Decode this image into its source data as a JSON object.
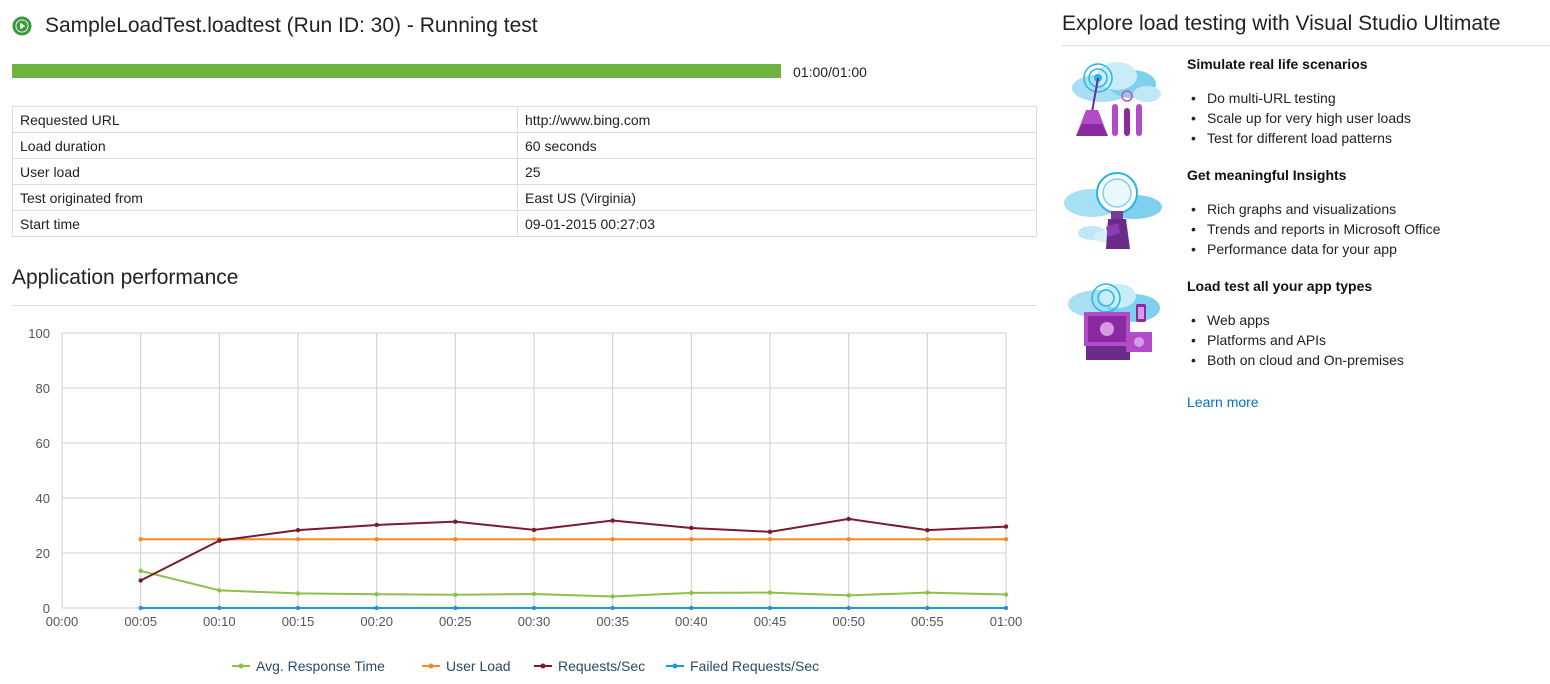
{
  "header": {
    "title": "SampleLoadTest.loadtest (Run ID: 30) - Running test",
    "status_color": "#3a9a3a"
  },
  "progress": {
    "fraction": 1.0,
    "text": "01:00/01:00",
    "color": "#6cb33f"
  },
  "info_table": [
    {
      "label": "Requested URL",
      "value": "http://www.bing.com"
    },
    {
      "label": "Load duration",
      "value": "60 seconds"
    },
    {
      "label": "User load",
      "value": "25"
    },
    {
      "label": "Test originated from",
      "value": "East US (Virginia)"
    },
    {
      "label": "Start time",
      "value": "09-01-2015 00:27:03"
    }
  ],
  "performance": {
    "title": "Application performance"
  },
  "chart_data": {
    "type": "line",
    "categories": [
      "00:00",
      "00:05",
      "00:10",
      "00:15",
      "00:20",
      "00:25",
      "00:30",
      "00:35",
      "00:40",
      "00:45",
      "00:50",
      "00:55",
      "01:00"
    ],
    "ylim": [
      0,
      100
    ],
    "yticks": [
      0,
      20,
      40,
      60,
      80,
      100
    ],
    "grid": true,
    "legend_position": "bottom",
    "series": [
      {
        "name": "Avg. Response Time",
        "color": "#8dc14a",
        "values": [
          null,
          13.5,
          6.4,
          5.3,
          5.0,
          4.8,
          5.1,
          4.2,
          5.5,
          5.6,
          4.6,
          5.6,
          4.9
        ]
      },
      {
        "name": "User Load",
        "color": "#f28b2c",
        "values": [
          null,
          25,
          25,
          25,
          25,
          25,
          25,
          25,
          25,
          25,
          25,
          25,
          25
        ]
      },
      {
        "name": "Requests/Sec",
        "color": "#7a1b2e",
        "values": [
          null,
          10,
          24.5,
          28.3,
          30.2,
          31.4,
          28.4,
          31.8,
          29.1,
          27.7,
          32.4,
          28.3,
          29.6
        ]
      },
      {
        "name": "Failed Requests/Sec",
        "color": "#1a9bd2",
        "values": [
          null,
          0,
          0,
          0,
          0,
          0,
          0,
          0,
          0,
          0,
          0,
          0,
          0
        ]
      }
    ]
  },
  "explore": {
    "title": "Explore load testing with Visual Studio Ultimate",
    "features": [
      {
        "icon": "flask-cloud-icon",
        "heading": "Simulate real life scenarios",
        "items": [
          "Do multi-URL testing",
          "Scale up for very high user loads",
          "Test for different load patterns"
        ]
      },
      {
        "icon": "lightbulb-cloud-icon",
        "heading": "Get meaningful Insights",
        "items": [
          "Rich graphs and visualizations",
          "Trends and reports in Microsoft Office",
          "Performance data for your app"
        ]
      },
      {
        "icon": "devices-cloud-icon",
        "heading": "Load test all your app types",
        "items": [
          "Web apps",
          "Platforms and APIs",
          "Both on cloud and On-premises"
        ]
      }
    ],
    "learn_more": "Learn more",
    "link_color": "#0072c6"
  }
}
